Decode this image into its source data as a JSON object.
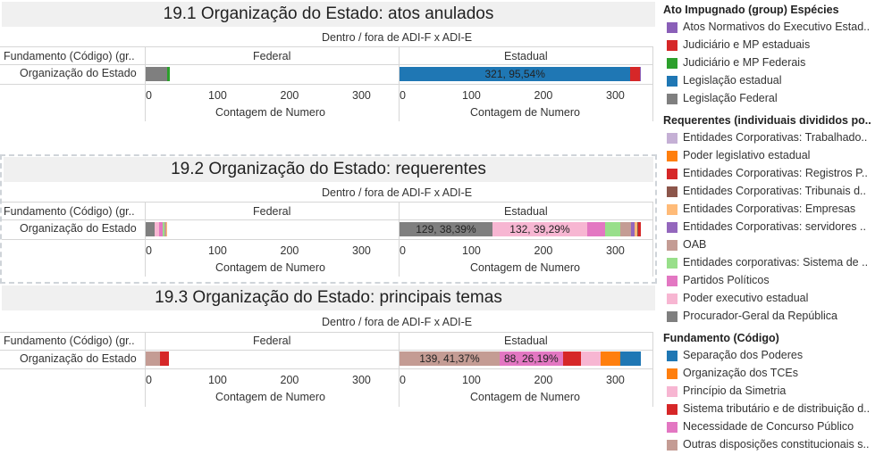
{
  "sheets": [
    {
      "title": "19.1 Organização do Estado: atos anulados",
      "header_top": "Dentro / fora de ADI-F x ADI-E",
      "row_header": "Fundamento (Código) (gr..",
      "col_federal": "Federal",
      "col_estadual": "Estadual",
      "row_label": "Organização do Estado",
      "axis_title_left": "Contagem de Numero",
      "axis_title_right": "Contagem de Numero",
      "ticks": [
        "0",
        "100",
        "200",
        "300"
      ],
      "bar_label_1": "321, 95,54%",
      "bar_label_2": ""
    },
    {
      "title": "19.2 Organização do Estado: requerentes",
      "header_top": "Dentro / fora de ADI-F x ADI-E",
      "row_header": "Fundamento (Código) (gr..",
      "col_federal": "Federal",
      "col_estadual": "Estadual",
      "row_label": "Organização do Estado",
      "axis_title_left": "Contagem de Numero",
      "axis_title_right": "Contagem de Numero",
      "ticks": [
        "0",
        "100",
        "200",
        "300"
      ],
      "bar_label_1": "129, 38,39%",
      "bar_label_2": "132, 39,29%"
    },
    {
      "title": "19.3 Organização do Estado: principais temas",
      "header_top": "Dentro / fora de ADI-F x ADI-E",
      "row_header": "Fundamento (Código) (gr..",
      "col_federal": "Federal",
      "col_estadual": "Estadual",
      "row_label": "Organização do Estado",
      "axis_title_left": "Contagem de Numero",
      "axis_title_right": "Contagem de Numero",
      "ticks": [
        "0",
        "100",
        "200",
        "300"
      ],
      "bar_label_1": "139, 41,37%",
      "bar_label_2": "88, 26,19%"
    }
  ],
  "legend": {
    "group1_title": "Ato Impugnado (group) Espécies",
    "group1": [
      {
        "label": "Atos Normativos do Executivo Estad..",
        "color": "#8a5fb8"
      },
      {
        "label": "Judiciário e MP estaduais",
        "color": "#d62728"
      },
      {
        "label": "Judiciário e MP Federais",
        "color": "#2ca02c"
      },
      {
        "label": "Legislação estadual",
        "color": "#1f77b4"
      },
      {
        "label": "Legislação Federal",
        "color": "#7f7f7f"
      }
    ],
    "group2_title": "Requerentes (individuais divididos po..",
    "group2": [
      {
        "label": "Entidades Corporativas: Trabalhado..",
        "color": "#c5b0d5"
      },
      {
        "label": "Poder legislativo estadual",
        "color": "#ff7f0e"
      },
      {
        "label": "Entidades Corporativas: Registros P..",
        "color": "#d62728"
      },
      {
        "label": "Entidades Corporativas: Tribunais d..",
        "color": "#8c564b"
      },
      {
        "label": "Entidades Corporativas: Empresas",
        "color": "#ffbb78"
      },
      {
        "label": "Entidades Corporativas: servidores ..",
        "color": "#9467bd"
      },
      {
        "label": "OAB",
        "color": "#c49c94"
      },
      {
        "label": "Entidades corporativas: Sistema de ..",
        "color": "#98df8a"
      },
      {
        "label": "Partidos Políticos",
        "color": "#e377c2"
      },
      {
        "label": "Poder executivo estadual",
        "color": "#f7b6d2"
      },
      {
        "label": "Procurador-Geral da República",
        "color": "#7f7f7f"
      }
    ],
    "group3_title": "Fundamento (Código)",
    "group3": [
      {
        "label": "Separação dos Poderes",
        "color": "#1f77b4"
      },
      {
        "label": "Organização dos TCEs",
        "color": "#ff7f0e"
      },
      {
        "label": "Princípio da Simetria",
        "color": "#f7b6d2"
      },
      {
        "label": "Sistema tributário e de distribuição d..",
        "color": "#d62728"
      },
      {
        "label": "Necessidade de Concurso Público",
        "color": "#e377c2"
      },
      {
        "label": "Outras disposições constitucionais s..",
        "color": "#c49c94"
      }
    ]
  },
  "chart_data": [
    {
      "type": "bar",
      "title": "19.1 Organização do Estado: atos anulados",
      "xlabel": "Contagem de Numero",
      "xlim": [
        0,
        340
      ],
      "panels": [
        {
          "name": "Federal",
          "segments": [
            {
              "series": "Legislação Federal",
              "value": 30,
              "color": "#7f7f7f"
            },
            {
              "series": "Judiciário e MP Federais",
              "value": 3,
              "color": "#2ca02c"
            }
          ]
        },
        {
          "name": "Estadual",
          "segments": [
            {
              "series": "Legislação estadual",
              "value": 321,
              "color": "#1f77b4",
              "label": "321, 95,54%"
            },
            {
              "series": "Judiciário e MP estaduais",
              "value": 13,
              "color": "#d62728"
            },
            {
              "series": "Atos Normativos do Executivo Estad..",
              "value": 2,
              "color": "#8a5fb8"
            }
          ]
        }
      ]
    },
    {
      "type": "bar",
      "title": "19.2 Organização do Estado: requerentes",
      "xlabel": "Contagem de Numero",
      "xlim": [
        0,
        340
      ],
      "panels": [
        {
          "name": "Federal",
          "segments": [
            {
              "series": "Procurador-Geral da República",
              "value": 13,
              "color": "#7f7f7f"
            },
            {
              "series": "Poder executivo estadual",
              "value": 6,
              "color": "#f7b6d2"
            },
            {
              "series": "Partidos Políticos",
              "value": 4,
              "color": "#e377c2"
            },
            {
              "series": "Entidades corporativas: Sistema de ..",
              "value": 3,
              "color": "#98df8a"
            },
            {
              "series": "OAB",
              "value": 2,
              "color": "#c49c94"
            },
            {
              "series": "Entidades Corporativas: Empresas",
              "value": 2,
              "color": "#ffbb78"
            }
          ]
        },
        {
          "name": "Estadual",
          "segments": [
            {
              "series": "Procurador-Geral da República",
              "value": 129,
              "color": "#7f7f7f",
              "label": "129, 38,39%"
            },
            {
              "series": "Poder executivo estadual",
              "value": 132,
              "color": "#f7b6d2",
              "label": "132, 39,29%"
            },
            {
              "series": "Partidos Políticos",
              "value": 25,
              "color": "#e377c2"
            },
            {
              "series": "Entidades corporativas: Sistema de ..",
              "value": 21,
              "color": "#98df8a"
            },
            {
              "series": "OAB",
              "value": 15,
              "color": "#c49c94"
            },
            {
              "series": "Entidades Corporativas: servidores ..",
              "value": 5,
              "color": "#9467bd"
            },
            {
              "series": "Entidades Corporativas: Empresas",
              "value": 3,
              "color": "#ffbb78"
            },
            {
              "series": "Entidades Corporativas: Tribunais d..",
              "value": 2,
              "color": "#8c564b"
            },
            {
              "series": "Entidades Corporativas: Registros P..",
              "value": 4,
              "color": "#d62728"
            }
          ]
        }
      ]
    },
    {
      "type": "bar",
      "title": "19.3 Organização do Estado: principais temas",
      "xlabel": "Contagem de Numero",
      "xlim": [
        0,
        340
      ],
      "panels": [
        {
          "name": "Federal",
          "segments": [
            {
              "series": "Outras disposições constitucionais s..",
              "value": 20,
              "color": "#c49c94"
            },
            {
              "series": "Sistema tributário e de distribuição d..",
              "value": 12,
              "color": "#d62728"
            }
          ]
        },
        {
          "name": "Estadual",
          "segments": [
            {
              "series": "Outras disposições constitucionais s..",
              "value": 139,
              "color": "#c49c94",
              "label": "139, 41,37%"
            },
            {
              "series": "Necessidade de Concurso Público",
              "value": 88,
              "color": "#e377c2",
              "label": "88, 26,19%"
            },
            {
              "series": "Sistema tributário e de distribuição d..",
              "value": 25,
              "color": "#d62728"
            },
            {
              "series": "Princípio da Simetria",
              "value": 27,
              "color": "#f7b6d2"
            },
            {
              "series": "Organização dos TCEs",
              "value": 28,
              "color": "#ff7f0e"
            },
            {
              "series": "Separação dos Poderes",
              "value": 28,
              "color": "#1f77b4"
            }
          ]
        }
      ]
    }
  ]
}
